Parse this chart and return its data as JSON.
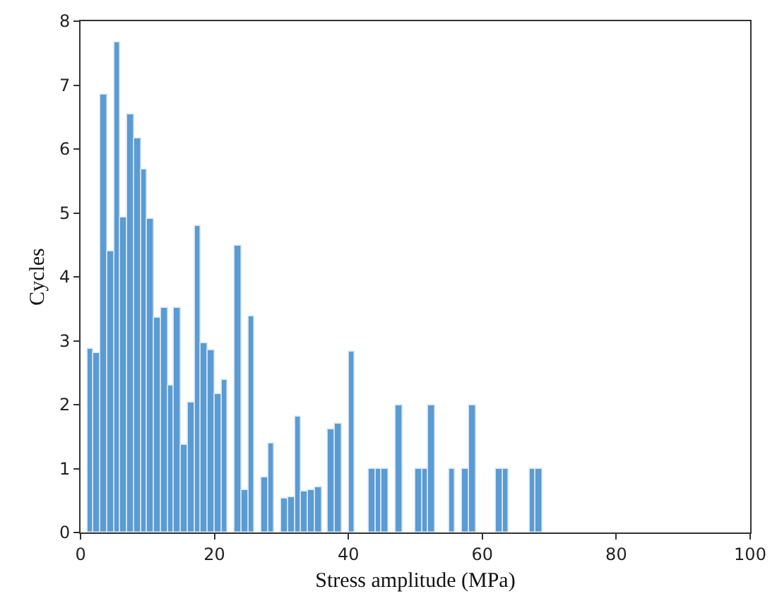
{
  "chart_data": {
    "type": "histogram",
    "xlabel": "Stress amplitude (MPa)",
    "ylabel": "Cycles",
    "bins": [
      1,
      2,
      3,
      4,
      5,
      6,
      7,
      8,
      9,
      10,
      11,
      12,
      13,
      14,
      15,
      16,
      17,
      18,
      19,
      20,
      21,
      22,
      23,
      24,
      25,
      26,
      27,
      28,
      29,
      30,
      31,
      32,
      33,
      34,
      35,
      36,
      37,
      38,
      39,
      40,
      41,
      42,
      43,
      44,
      45,
      46,
      47,
      48,
      49,
      50,
      51,
      52,
      53,
      54,
      55,
      56,
      57,
      58,
      59,
      60,
      61,
      62,
      63,
      64,
      65,
      66,
      67,
      68,
      69
    ],
    "values": [
      2.87,
      2.81,
      6.85,
      4.4,
      7.67,
      4.92,
      6.55,
      6.16,
      5.69,
      4.91,
      3.36,
      3.52,
      2.3,
      3.52,
      1.37,
      2.03,
      4.79,
      2.97,
      2.85,
      2.17,
      2.38,
      0,
      4.48,
      0.67,
      3.39,
      0,
      0.86,
      1.4,
      0,
      0.52,
      0.55,
      1.82,
      0.63,
      0.66,
      0.71,
      0,
      1.61,
      1.7,
      0,
      2.83,
      0,
      0,
      1,
      1,
      1,
      0,
      2,
      0,
      0,
      1,
      1,
      2,
      0,
      0,
      1,
      0,
      1,
      2,
      0,
      0,
      0,
      1,
      1,
      0,
      0,
      0,
      1,
      1
    ],
    "color": "#5b9bd3",
    "xlim": [
      0,
      100
    ],
    "xticks": [
      0,
      20,
      40,
      60,
      80,
      100
    ],
    "ylim": [
      0,
      8
    ],
    "yticks": [
      0,
      1,
      2,
      3,
      4,
      5,
      6,
      7,
      8
    ]
  }
}
